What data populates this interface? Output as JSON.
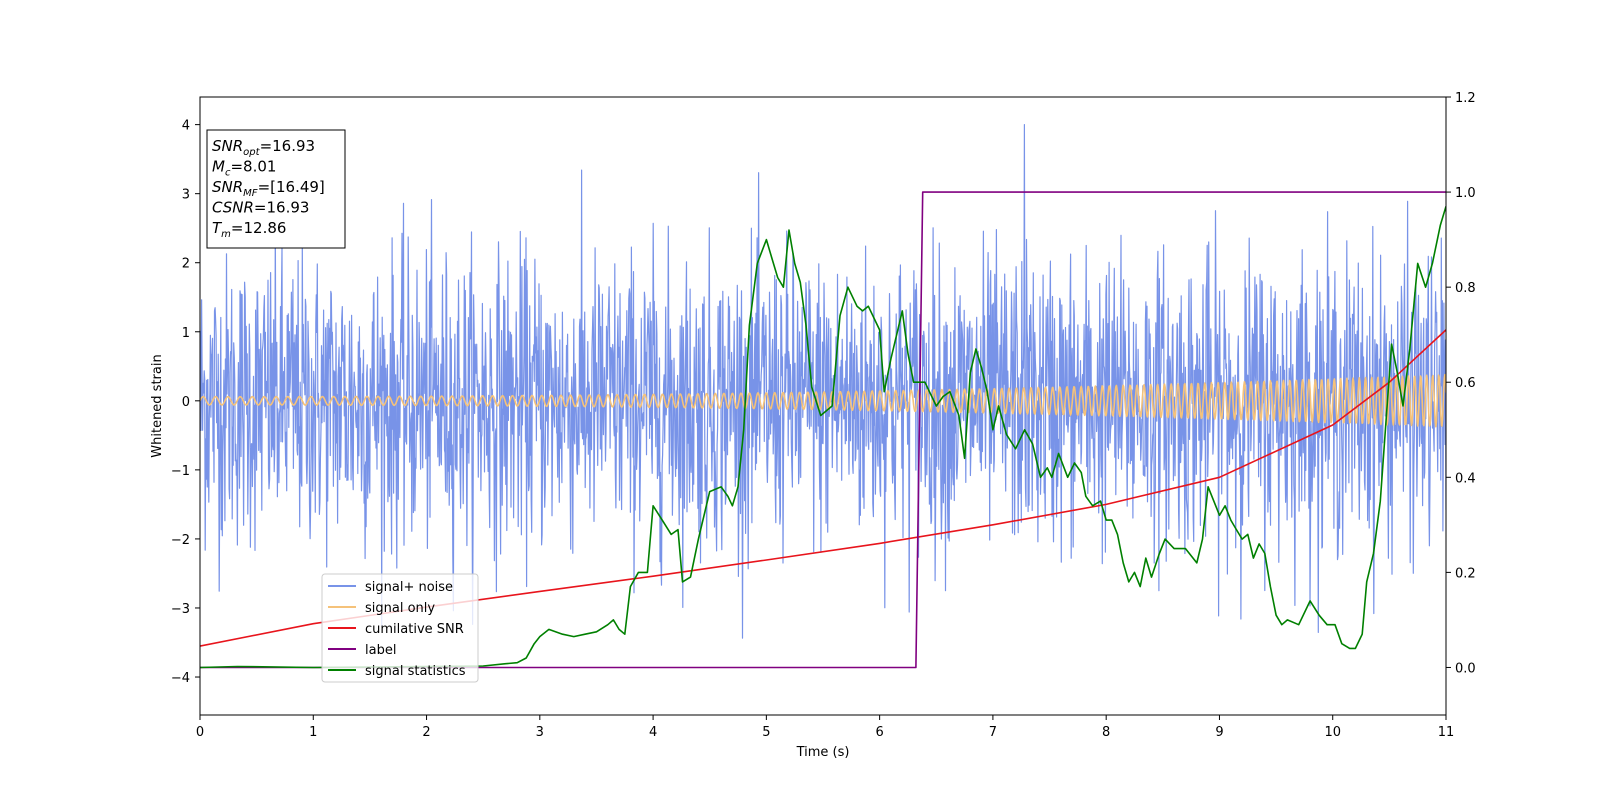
{
  "chart_data": {
    "type": "line",
    "title": "",
    "xlabel": "Time (s)",
    "ylabel": "Whitened strain",
    "xlim": [
      0,
      11
    ],
    "ylim": [
      -4.55,
      4.4
    ],
    "y2lim": [
      -0.1,
      1.2
    ],
    "xticks": [
      0,
      1,
      2,
      3,
      4,
      5,
      6,
      7,
      8,
      9,
      10,
      11
    ],
    "yticks": [
      -4,
      -3,
      -2,
      -1,
      0,
      1,
      2,
      3,
      4
    ],
    "y2ticks": [
      "0.0",
      "0.2",
      "0.4",
      "0.6",
      "0.8",
      "1.0",
      "1.2"
    ],
    "grid": false,
    "legend_position": "lower-left",
    "annotation": [
      {
        "main": "SNR",
        "sub": "opt",
        "rest": "=16.93"
      },
      {
        "main": "M",
        "sub": "c",
        "rest": "=8.01"
      },
      {
        "main": "SNR",
        "sub": "MF",
        "rest": "=[16.49]"
      },
      {
        "main": "CSNR",
        "sub": "",
        "rest": "=16.93"
      },
      {
        "main": "T",
        "sub": "m",
        "rest": "=12.86"
      }
    ],
    "series": [
      {
        "name": "signal+ noise",
        "color": "#7893e8",
        "axis": "left",
        "description": "dense noisy strain oscillating roughly between -3.4 and 4.0"
      },
      {
        "name": "signal only",
        "color": "#f5c27a",
        "axis": "left",
        "amplitude_start": 0.06,
        "amplitude_end": 0.38,
        "description": "chirp whose amplitude and frequency grow with time"
      },
      {
        "name": "cumilative SNR",
        "color": "#e8141c",
        "axis": "right",
        "x": [
          0,
          1,
          2,
          3,
          4,
          5,
          6,
          7,
          8,
          9,
          10,
          10.5,
          11
        ],
        "y": [
          0.045,
          0.092,
          0.127,
          0.16,
          0.192,
          0.226,
          0.261,
          0.3,
          0.343,
          0.4,
          0.51,
          0.6,
          0.71
        ]
      },
      {
        "name": "label",
        "color": "#800080",
        "axis": "right",
        "x": [
          0,
          6.32,
          6.38,
          11
        ],
        "y": [
          0.0,
          0.0,
          1.0,
          1.0
        ]
      },
      {
        "name": "signal statistics",
        "color": "#008000",
        "axis": "right",
        "x": [
          0,
          0.33,
          1.0,
          2.5,
          2.7,
          2.8,
          2.88,
          2.95,
          3.0,
          3.08,
          3.2,
          3.3,
          3.4,
          3.5,
          3.6,
          3.65,
          3.7,
          3.75,
          3.8,
          3.87,
          3.95,
          4.0,
          4.08,
          4.16,
          4.22,
          4.26,
          4.33,
          4.4,
          4.5,
          4.6,
          4.66,
          4.7,
          4.75,
          4.8,
          4.85,
          4.92,
          5.0,
          5.05,
          5.1,
          5.15,
          5.2,
          5.25,
          5.3,
          5.35,
          5.4,
          5.48,
          5.58,
          5.65,
          5.72,
          5.8,
          5.85,
          5.9,
          6.0,
          6.04,
          6.1,
          6.2,
          6.25,
          6.3,
          6.4,
          6.5,
          6.56,
          6.62,
          6.7,
          6.75,
          6.8,
          6.85,
          6.9,
          6.95,
          7.0,
          7.05,
          7.12,
          7.2,
          7.28,
          7.35,
          7.42,
          7.48,
          7.52,
          7.58,
          7.66,
          7.72,
          7.78,
          7.82,
          7.88,
          7.95,
          8.0,
          8.05,
          8.1,
          8.15,
          8.2,
          8.25,
          8.3,
          8.35,
          8.4,
          8.47,
          8.52,
          8.6,
          8.7,
          8.8,
          8.85,
          8.9,
          8.95,
          9.0,
          9.05,
          9.1,
          9.15,
          9.2,
          9.25,
          9.3,
          9.35,
          9.4,
          9.45,
          9.5,
          9.55,
          9.6,
          9.7,
          9.8,
          9.88,
          9.95,
          10.02,
          10.08,
          10.15,
          10.2,
          10.26,
          10.3,
          10.36,
          10.42,
          10.48,
          10.52,
          10.57,
          10.62,
          10.68,
          10.75,
          10.82,
          10.88,
          10.95,
          11.0
        ],
        "y": [
          0.0,
          0.002,
          0.0,
          0.003,
          0.008,
          0.01,
          0.02,
          0.05,
          0.065,
          0.08,
          0.07,
          0.065,
          0.07,
          0.075,
          0.09,
          0.1,
          0.08,
          0.07,
          0.17,
          0.2,
          0.2,
          0.34,
          0.31,
          0.28,
          0.29,
          0.18,
          0.19,
          0.27,
          0.37,
          0.38,
          0.36,
          0.34,
          0.38,
          0.5,
          0.72,
          0.85,
          0.9,
          0.86,
          0.82,
          0.8,
          0.92,
          0.85,
          0.81,
          0.72,
          0.59,
          0.53,
          0.55,
          0.74,
          0.8,
          0.76,
          0.75,
          0.76,
          0.71,
          0.58,
          0.65,
          0.75,
          0.66,
          0.6,
          0.6,
          0.55,
          0.57,
          0.58,
          0.53,
          0.44,
          0.62,
          0.67,
          0.63,
          0.58,
          0.5,
          0.55,
          0.49,
          0.46,
          0.5,
          0.47,
          0.4,
          0.42,
          0.4,
          0.45,
          0.4,
          0.43,
          0.41,
          0.36,
          0.34,
          0.35,
          0.31,
          0.31,
          0.28,
          0.22,
          0.18,
          0.2,
          0.17,
          0.23,
          0.19,
          0.24,
          0.27,
          0.25,
          0.25,
          0.22,
          0.27,
          0.38,
          0.35,
          0.32,
          0.34,
          0.31,
          0.29,
          0.27,
          0.28,
          0.23,
          0.26,
          0.24,
          0.17,
          0.11,
          0.09,
          0.1,
          0.09,
          0.14,
          0.11,
          0.09,
          0.09,
          0.05,
          0.04,
          0.04,
          0.07,
          0.18,
          0.24,
          0.35,
          0.55,
          0.68,
          0.62,
          0.55,
          0.67,
          0.85,
          0.8,
          0.85,
          0.93,
          0.97
        ]
      }
    ]
  }
}
